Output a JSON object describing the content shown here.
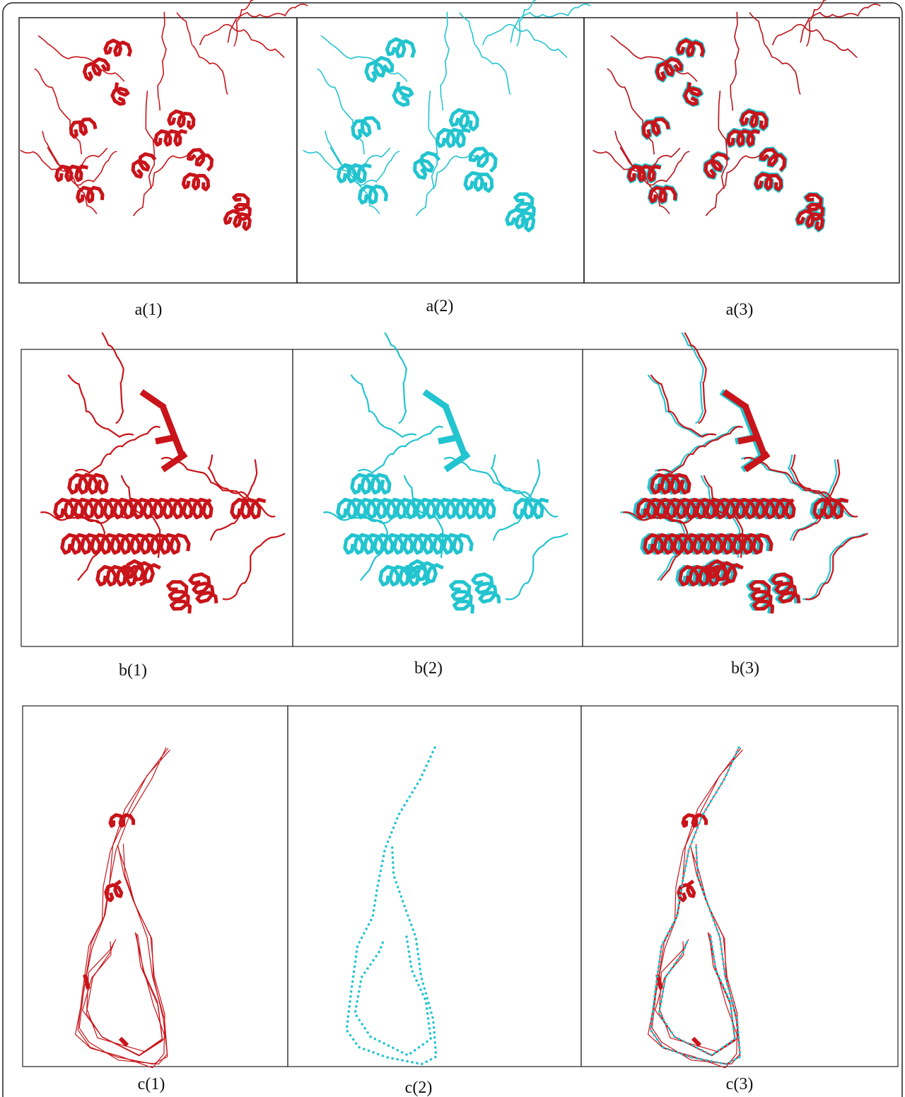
{
  "figure": {
    "labels": [
      "a(1)",
      "a(2)",
      "a(3)",
      "b(1)",
      "b(2)",
      "b(3)",
      "c(1)",
      "c(2)",
      "c(3)"
    ]
  }
}
